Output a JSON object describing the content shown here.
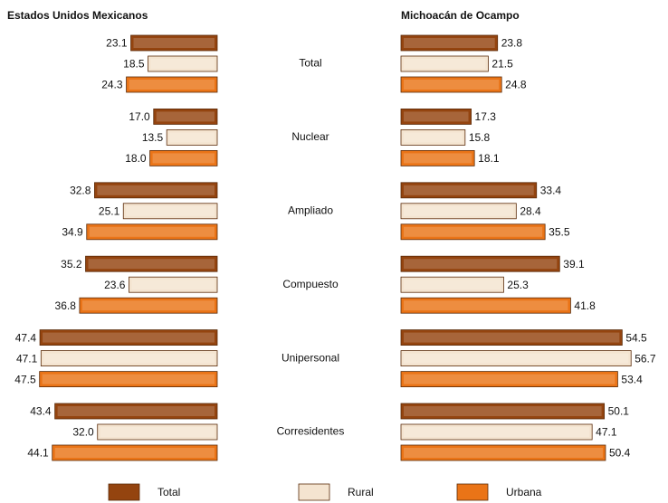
{
  "chart_data": {
    "type": "bar",
    "categories": [
      "Total",
      "Nuclear",
      "Ampliado",
      "Compuesto",
      "Unipersonal",
      "Corresidentes"
    ],
    "legend": [
      {
        "name": "Total",
        "color": "#94440f"
      },
      {
        "name": "Rural",
        "color": "#f4e4d0"
      },
      {
        "name": "Urbana",
        "color": "#ea7417"
      }
    ],
    "panels": [
      {
        "title": "Estados Unidos Mexicanos",
        "xlim": [
          0,
          60
        ],
        "series": [
          {
            "values": [
              23.1,
              17.0,
              32.8,
              35.2,
              47.4,
              43.4
            ],
            "value_labels": [
              "23.1",
              "17.0",
              "32.8",
              "35.2",
              "47.4",
              "43.4"
            ]
          },
          {
            "values": [
              18.5,
              13.5,
              25.1,
              23.6,
              47.1,
              32.0
            ],
            "value_labels": [
              "18.5",
              "13.5",
              "25.1",
              "23.6",
              "47.1",
              "32.0"
            ]
          },
          {
            "values": [
              24.3,
              18.0,
              34.9,
              36.8,
              47.5,
              44.1
            ],
            "value_labels": [
              "24.3",
              "18.0",
              "34.9",
              "36.8",
              "47.5",
              "44.1"
            ]
          }
        ]
      },
      {
        "title": "Michoacán de Ocampo",
        "xlim": [
          0,
          60
        ],
        "series": [
          {
            "values": [
              23.8,
              17.3,
              33.4,
              39.1,
              54.5,
              50.1
            ],
            "value_labels": [
              "23.8",
              "17.3",
              "33.4",
              "39.1",
              "54.5",
              "50.1"
            ]
          },
          {
            "values": [
              21.5,
              15.8,
              28.4,
              25.3,
              56.7,
              47.1
            ],
            "value_labels": [
              "21.5",
              "15.8",
              "28.4",
              "25.3",
              "56.7",
              "47.1"
            ]
          },
          {
            "values": [
              24.8,
              18.1,
              35.5,
              41.8,
              53.4,
              50.4
            ],
            "value_labels": [
              "24.8",
              "18.1",
              "35.5",
              "41.8",
              "53.4",
              "50.4"
            ]
          }
        ]
      }
    ]
  }
}
